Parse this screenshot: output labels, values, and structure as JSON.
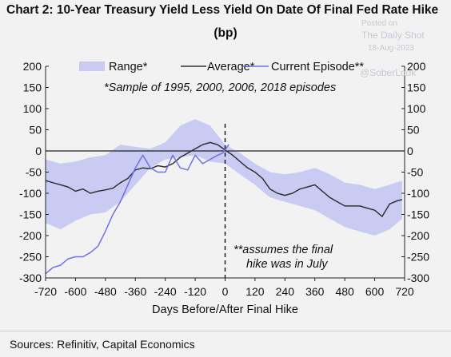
{
  "header": {
    "title": "Chart 2: 10-Year Treasury Yield Less Yield On Date Of Final Fed Rate Hike",
    "subtitle": "(bp)"
  },
  "watermark": {
    "posted_on": "Posted on",
    "site": "The Daily Shot",
    "date": "18-Aug-2023",
    "handle": "@SoberLook"
  },
  "footer": {
    "source": "Sources: Refinitiv, Capital Economics"
  },
  "colors": {
    "range": "#c9cbf3",
    "average": "#333333",
    "current": "#7070e8",
    "background": "#f2f2f2"
  },
  "chart_data": {
    "type": "line",
    "xlabel": "Days Before/After Final Hike",
    "ylabel": "",
    "xlim": [
      -720,
      720
    ],
    "ylim": [
      -300,
      200
    ],
    "xticks": [
      -720,
      -600,
      -480,
      -360,
      -240,
      -120,
      0,
      120,
      240,
      360,
      480,
      600,
      720
    ],
    "yticks": [
      200,
      150,
      100,
      50,
      0,
      -50,
      -100,
      -150,
      -200,
      -250,
      -300
    ],
    "grid": false,
    "legend_position": "top",
    "vline_x": 0,
    "annotations": [
      "*Sample of 1995, 2000, 2006, 2018 episodes",
      "**assumes the final",
      "hike was in July"
    ],
    "series": [
      {
        "name": "Range*",
        "kind": "band",
        "x": [
          -720,
          -660,
          -600,
          -540,
          -480,
          -420,
          -360,
          -300,
          -240,
          -180,
          -120,
          -60,
          0,
          60,
          120,
          180,
          240,
          300,
          360,
          420,
          480,
          540,
          600,
          660,
          710
        ],
        "lower": [
          -170,
          -185,
          -165,
          -150,
          -145,
          -120,
          -80,
          -40,
          -20,
          -15,
          -10,
          -25,
          -30,
          -55,
          -80,
          -110,
          -120,
          -130,
          -140,
          -160,
          -180,
          -190,
          -200,
          -185,
          -160
        ],
        "upper": [
          -20,
          -30,
          -25,
          -15,
          -10,
          15,
          10,
          5,
          20,
          60,
          75,
          60,
          15,
          -5,
          -30,
          -50,
          -55,
          -50,
          -40,
          -55,
          -75,
          -80,
          -90,
          -80,
          -70
        ]
      },
      {
        "name": "Average*",
        "x": [
          -720,
          -690,
          -660,
          -630,
          -600,
          -570,
          -540,
          -510,
          -480,
          -450,
          -420,
          -390,
          -360,
          -330,
          -300,
          -270,
          -240,
          -210,
          -180,
          -150,
          -120,
          -90,
          -60,
          -30,
          0,
          30,
          60,
          90,
          120,
          150,
          180,
          210,
          240,
          270,
          300,
          330,
          360,
          390,
          420,
          450,
          480,
          510,
          540,
          570,
          600,
          630,
          660,
          690,
          710
        ],
        "values": [
          -70,
          -75,
          -80,
          -85,
          -95,
          -90,
          -100,
          -95,
          -92,
          -88,
          -75,
          -65,
          -45,
          -40,
          -42,
          -35,
          -38,
          -30,
          -15,
          -5,
          5,
          15,
          20,
          15,
          2,
          -10,
          -25,
          -40,
          -50,
          -65,
          -90,
          -100,
          -105,
          -100,
          -90,
          -85,
          -80,
          -95,
          -110,
          -120,
          -130,
          -130,
          -130,
          -135,
          -140,
          -155,
          -125,
          -118,
          -115
        ]
      },
      {
        "name": "Current Episode**",
        "x": [
          -720,
          -690,
          -660,
          -630,
          -600,
          -570,
          -540,
          -510,
          -480,
          -450,
          -420,
          -390,
          -360,
          -330,
          -300,
          -270,
          -240,
          -210,
          -180,
          -150,
          -120,
          -90,
          -60,
          -30,
          -10,
          15
        ],
        "values": [
          -290,
          -275,
          -270,
          -255,
          -250,
          -250,
          -240,
          -225,
          -190,
          -150,
          -120,
          -80,
          -40,
          -10,
          -40,
          -50,
          -50,
          -10,
          -40,
          -45,
          -10,
          -30,
          -20,
          -10,
          -5,
          15
        ]
      }
    ]
  }
}
